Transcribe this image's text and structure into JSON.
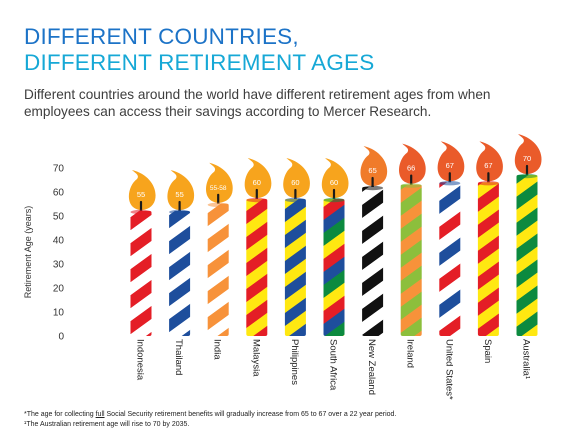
{
  "header": {
    "title_line1": "DIFFERENT COUNTRIES,",
    "title_line2": "DIFFERENT RETIREMENT AGES",
    "subtitle": "Different countries around the world have different retirement ages from when employees can access their savings according to Mercer Research."
  },
  "footnotes": {
    "note1_before": "*The age for collecting ",
    "note1_underlined": "full",
    "note1_after": " Social Security retirement benefits will gradually increase from 65 to 67 over a 22 year period.",
    "note2": "¹The Australian retirement age will rise to 70 by 2035."
  },
  "chart_data": {
    "type": "bar",
    "style": "candles",
    "ylabel": "Retirement Age (years)",
    "ylim": [
      0,
      70
    ],
    "yticks": [
      0,
      10,
      20,
      30,
      40,
      50,
      60,
      70
    ],
    "categories": [
      "Indonesia",
      "Thailand",
      "India",
      "Malaysia",
      "Philippines",
      "South Africa",
      "New Zealand",
      "Ireland",
      "United States*",
      "Spain",
      "Australia¹"
    ],
    "values": [
      55,
      55,
      58,
      60,
      60,
      60,
      65,
      66,
      67,
      67,
      70
    ],
    "data_labels": [
      "55",
      "55",
      "55-58",
      "60",
      "60",
      "60",
      "65",
      "66",
      "67",
      "67",
      "70"
    ],
    "bars": [
      {
        "colors": [
          "#e41e26",
          "#ffffff"
        ]
      },
      {
        "colors": [
          "#1e4e9c",
          "#ffffff"
        ]
      },
      {
        "colors": [
          "#f7923a",
          "#ffffff"
        ]
      },
      {
        "colors": [
          "#e41e26",
          "#ffe811"
        ]
      },
      {
        "colors": [
          "#1e4e9c",
          "#ffe811"
        ]
      },
      {
        "colors": [
          "#0c8a3f",
          "#ffe811",
          "#e41e26",
          "#1e4e9c"
        ]
      },
      {
        "colors": [
          "#111111",
          "#ffffff"
        ]
      },
      {
        "colors": [
          "#8cbf3c",
          "#f7923a"
        ]
      },
      {
        "colors": [
          "#1e4e9c",
          "#ffffff",
          "#e41e26",
          "#ffffff"
        ]
      },
      {
        "colors": [
          "#e41e26",
          "#ffe811"
        ]
      },
      {
        "colors": [
          "#0c8a3f",
          "#ffe811"
        ]
      }
    ],
    "flame_colors": [
      "#f7a41d",
      "#f7a41d",
      "#f7a41d",
      "#f7a41d",
      "#f7a41d",
      "#f7a41d",
      "#f07b2a",
      "#ea5b2a",
      "#ea5b2a",
      "#ea5b2a",
      "#ea5b2a"
    ],
    "grid": false,
    "legend": "none"
  }
}
